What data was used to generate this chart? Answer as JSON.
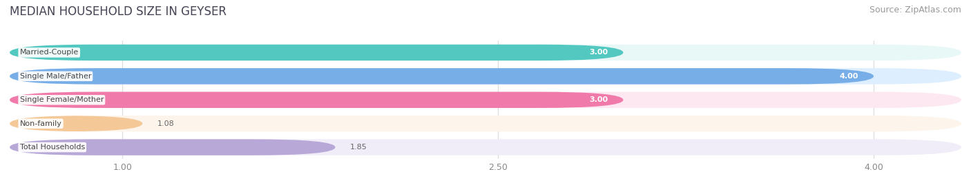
{
  "title": "MEDIAN HOUSEHOLD SIZE IN GEYSER",
  "source": "Source: ZipAtlas.com",
  "categories": [
    "Married-Couple",
    "Single Male/Father",
    "Single Female/Mother",
    "Non-family",
    "Total Households"
  ],
  "values": [
    3.0,
    4.0,
    3.0,
    1.08,
    1.85
  ],
  "bar_colors": [
    "#52c8c0",
    "#78aee8",
    "#f07aaa",
    "#f5c898",
    "#b8a8d8"
  ],
  "bar_bg_colors": [
    "#e8f8f7",
    "#ddeeff",
    "#fde8f2",
    "#fdf5ec",
    "#f0ecf8"
  ],
  "value_label_inside": [
    true,
    true,
    true,
    false,
    false
  ],
  "value_labels": [
    "3.00",
    "4.00",
    "3.00",
    "1.08",
    "1.85"
  ],
  "x_ticks": [
    1.0,
    2.5,
    4.0
  ],
  "x_tick_labels": [
    "1.00",
    "2.50",
    "4.00"
  ],
  "xlim_left": 0.55,
  "xlim_right": 4.35,
  "background_color": "#ffffff",
  "grid_color": "#dddddd",
  "title_fontsize": 12,
  "source_fontsize": 9,
  "bar_label_fontsize": 8,
  "value_label_fontsize": 8,
  "tick_fontsize": 9,
  "bar_height": 0.68,
  "bar_spacing": 1.0
}
